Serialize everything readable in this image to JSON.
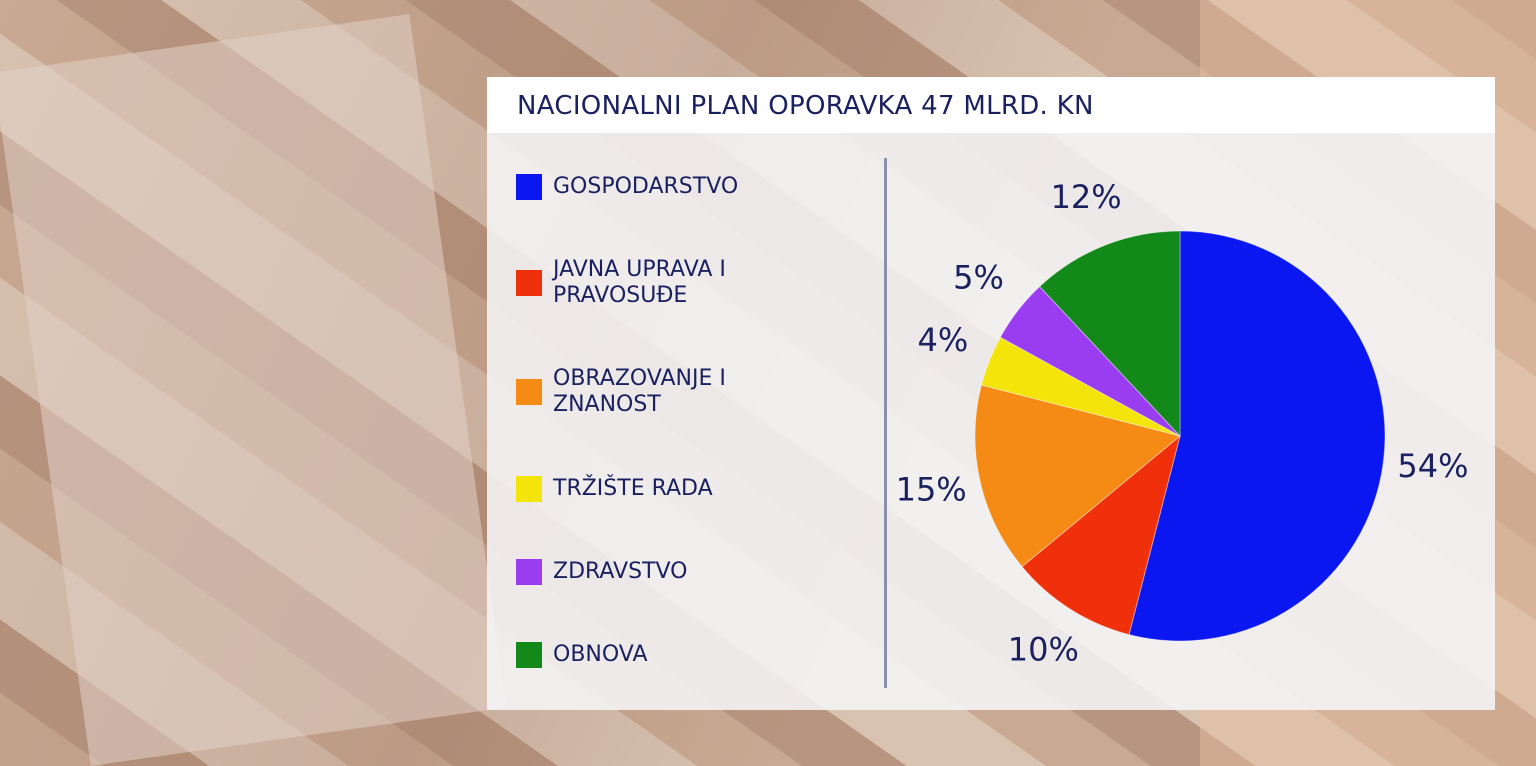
{
  "chart_data": {
    "type": "pie",
    "title": "NACIONALNI PLAN OPORAVKA 47 MLRD. KN",
    "categories": [
      "GOSPODARSTVO",
      "JAVNA UPRAVA I PRAVOSUĐE",
      "OBRAZOVANJE I ZNANOST",
      "TRŽIŠTE RADA",
      "ZDRAVSTVO",
      "OBNOVA"
    ],
    "values": [
      54,
      10,
      15,
      4,
      5,
      12
    ],
    "value_labels": [
      "54%",
      "10%",
      "15%",
      "4%",
      "5%",
      "12%"
    ],
    "colors": [
      "#0a17f0",
      "#f0300a",
      "#f58a14",
      "#f5e40a",
      "#9a3cf0",
      "#13891a"
    ]
  }
}
